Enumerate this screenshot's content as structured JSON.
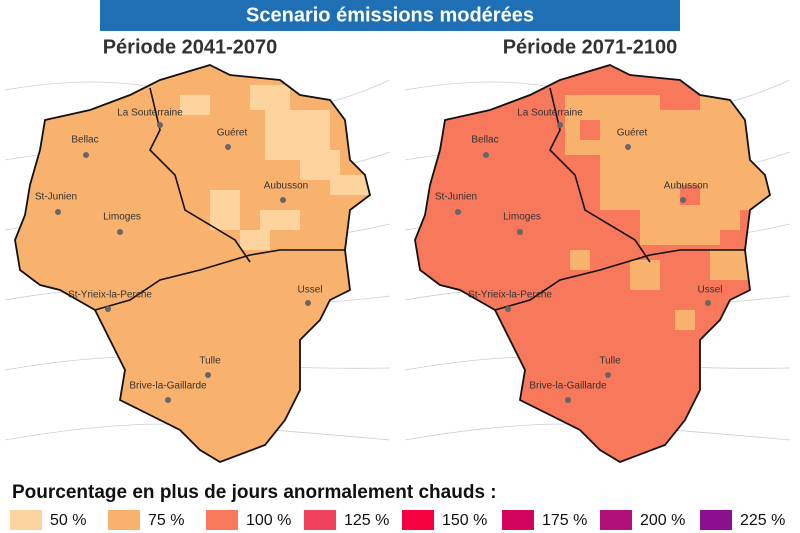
{
  "banner": "Scenario émissions modérées",
  "maps": [
    {
      "title": "Période 2041-2070",
      "cities": [
        "La Souterraine",
        "Guéret",
        "Bellac",
        "Aubusson",
        "St-Junien",
        "Limoges",
        "St-Yrieix-la-Perche",
        "Ussel",
        "Tulle",
        "Brive-la-Gaillarde"
      ]
    },
    {
      "title": "Période 2071-2100",
      "cities": [
        "La Souterraine",
        "Guéret",
        "Bellac",
        "Aubusson",
        "St-Junien",
        "Limoges",
        "St-Yrieix-la-Perche",
        "Ussel",
        "Tulle",
        "Brive-la-Gaillarde"
      ]
    }
  ],
  "legend": {
    "title": "Pourcentage en plus de jours anormalement chauds :",
    "items": [
      {
        "label": "50 %",
        "color": "#fdd49e"
      },
      {
        "label": "75 %",
        "color": "#f9b26d"
      },
      {
        "label": "100 %",
        "color": "#f7785b"
      },
      {
        "label": "125 %",
        "color": "#f2415c"
      },
      {
        "label": "150 %",
        "color": "#f4003f"
      },
      {
        "label": "175 %",
        "color": "#d4045c"
      },
      {
        "label": "200 %",
        "color": "#b10f7a"
      },
      {
        "label": "225 %",
        "color": "#8c0f8f"
      }
    ]
  }
}
